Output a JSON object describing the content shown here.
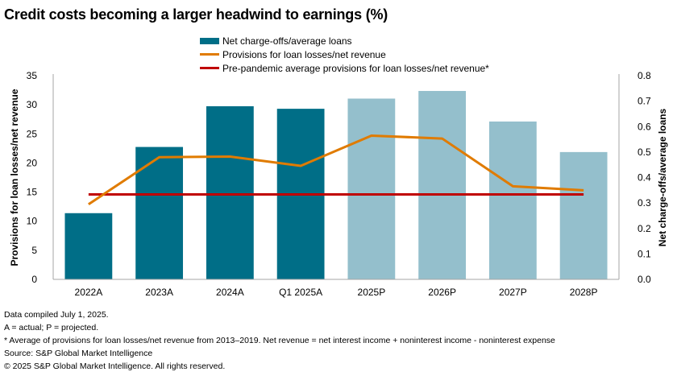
{
  "title": "Credit costs becoming a larger headwind to earnings (%)",
  "colors": {
    "actual_bar": "#006e87",
    "projected_bar": "#94bfcc",
    "provisions_line": "#e07b00",
    "pre_pandemic_line": "#c00000",
    "axis": "#a6a6a6",
    "text": "#000000"
  },
  "legend": [
    {
      "label": "Net charge-offs/average loans",
      "kind": "bar",
      "color": "#006e87"
    },
    {
      "label": "Provisions for loan losses/net revenue",
      "kind": "line",
      "color": "#e07b00"
    },
    {
      "label": "Pre-pandemic average provisions for loan losses/net revenue*",
      "kind": "line",
      "color": "#c00000"
    }
  ],
  "chart_data": {
    "type": "bar",
    "title": "Credit costs becoming a larger headwind to earnings (%)",
    "categories": [
      "2022A",
      "2023A",
      "2024A",
      "Q1 2025A",
      "2025P",
      "2026P",
      "2027P",
      "2028P"
    ],
    "projected_from_index": 4,
    "series": [
      {
        "name": "Net charge-offs/average loans",
        "type": "bar",
        "axis": "right",
        "values": [
          0.26,
          0.52,
          0.68,
          0.67,
          0.71,
          0.74,
          0.62,
          0.5
        ]
      },
      {
        "name": "Provisions for loan losses/net revenue",
        "type": "line",
        "axis": "left",
        "values": [
          12.9,
          21.0,
          21.1,
          19.5,
          24.7,
          24.2,
          16.0,
          15.3
        ]
      },
      {
        "name": "Pre-pandemic average provisions for loan losses/net revenue*",
        "type": "line",
        "axis": "left",
        "values": [
          14.6,
          14.6,
          14.6,
          14.6,
          14.6,
          14.6,
          14.6,
          14.6
        ]
      }
    ],
    "y_left": {
      "label": "Provisions for loan losses/net revenue",
      "min": 0,
      "max": 35,
      "ticks": [
        "0",
        "5",
        "10",
        "15",
        "20",
        "25",
        "30",
        "35"
      ]
    },
    "y_right": {
      "label": "Net charge-offs/average loans",
      "min": 0,
      "max": 0.8,
      "ticks": [
        "0.0",
        "0.1",
        "0.2",
        "0.3",
        "0.4",
        "0.5",
        "0.6",
        "0.7",
        "0.8"
      ]
    },
    "xlabel": "",
    "grid": false,
    "legend_position": "top-center"
  },
  "notes": [
    "Data compiled July 1, 2025.",
    "A = actual; P = projected.",
    "* Average of provisions for loan losses/net revenue from 2013–2019. Net revenue = net interest income + noninterest income - noninterest expense",
    "Source: S&P Global Market Intelligence",
    "© 2025 S&P Global Market Intelligence. All rights reserved."
  ]
}
